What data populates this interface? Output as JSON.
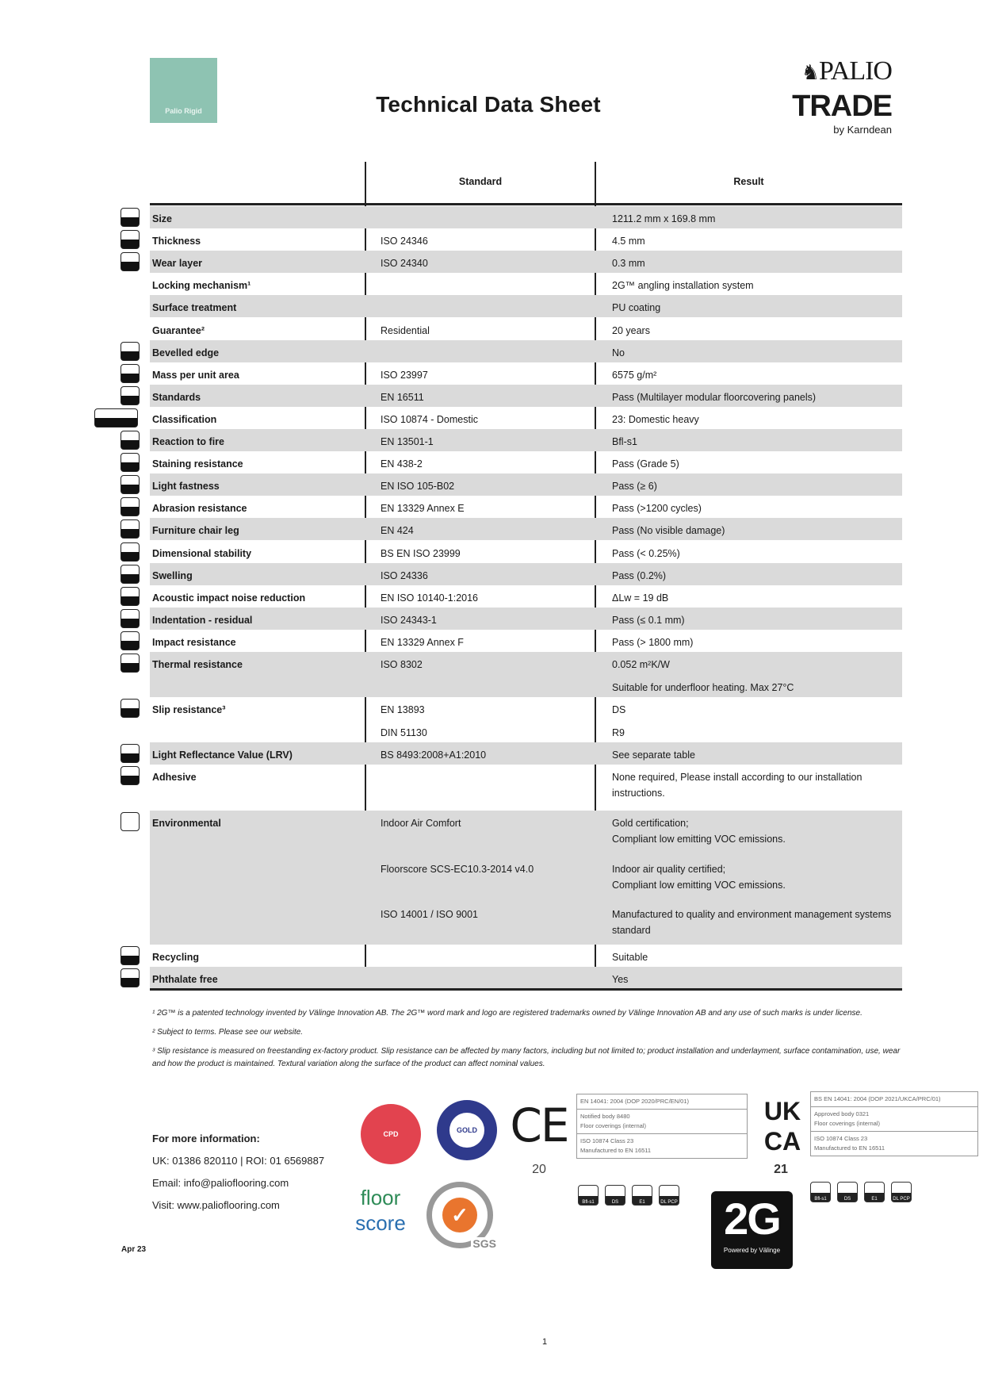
{
  "header": {
    "swatch_label": "Palio Rigid",
    "swatch_color": "#8ec3b2",
    "title": "Technical Data Sheet",
    "brand_line1": "PALIO",
    "brand_line2": "TRADE",
    "brand_line3": "by Karndean"
  },
  "table": {
    "columns": [
      "",
      "Standard",
      "Result"
    ],
    "row_shading": "#dadada",
    "rows": [
      {
        "label": "Size",
        "icon": "size-icon",
        "standard": [],
        "result": [
          "1211.2 mm x 169.8 mm"
        ]
      },
      {
        "label": "Thickness",
        "icon": "thickness-icon",
        "standard": [
          "ISO 24346"
        ],
        "result": [
          "4.5 mm"
        ]
      },
      {
        "label": "Wear layer",
        "icon": "wear-layer-icon",
        "standard": [
          "ISO 24340"
        ],
        "result": [
          "0.3 mm"
        ]
      },
      {
        "label": "Locking mechanism¹",
        "icon": "",
        "standard": [],
        "result": [
          "2G™ angling installation system"
        ]
      },
      {
        "label": "Surface treatment",
        "icon": "",
        "standard": [],
        "result": [
          "PU coating"
        ]
      },
      {
        "label": "Guarantee²",
        "icon": "",
        "standard": [
          "Residential"
        ],
        "result": [
          "20 years"
        ]
      },
      {
        "label": "Bevelled edge",
        "icon": "bevelled-edge-icon",
        "standard": [],
        "result": [
          "No"
        ]
      },
      {
        "label": "Mass per unit area",
        "icon": "mass-icon",
        "standard": [
          "ISO 23997"
        ],
        "result": [
          "6575 g/m²"
        ]
      },
      {
        "label": "Standards",
        "icon": "standards-icon",
        "standard": [
          "EN 16511"
        ],
        "result": [
          "Pass (Multilayer modular floorcovering panels)"
        ]
      },
      {
        "label": "Classification",
        "icon": "classification-icon",
        "standard": [
          "ISO 10874 - Domestic"
        ],
        "result": [
          "23: Domestic heavy"
        ]
      },
      {
        "label": "Reaction to fire",
        "icon": "fire-icon",
        "standard": [
          "EN 13501-1"
        ],
        "result": [
          "Bfl-s1"
        ]
      },
      {
        "label": "Staining resistance",
        "icon": "staining-icon",
        "standard": [
          "EN 438-2"
        ],
        "result": [
          "Pass (Grade 5)"
        ]
      },
      {
        "label": "Light fastness",
        "icon": "light-fastness-icon",
        "standard": [
          "EN ISO 105-B02"
        ],
        "result": [
          "Pass (≥ 6)"
        ]
      },
      {
        "label": "Abrasion resistance",
        "icon": "abrasion-icon",
        "standard": [
          "EN 13329 Annex E"
        ],
        "result": [
          "Pass (>1200 cycles)"
        ]
      },
      {
        "label": "Furniture chair leg",
        "icon": "chair-leg-icon",
        "standard": [
          "EN 424"
        ],
        "result": [
          "Pass (No visible damage)"
        ]
      },
      {
        "label": "Dimensional stability",
        "icon": "dimensional-stability-icon",
        "standard": [
          "BS EN ISO 23999"
        ],
        "result": [
          "Pass (< 0.25%)"
        ]
      },
      {
        "label": "Swelling",
        "icon": "swelling-icon",
        "standard": [
          "ISO 24336"
        ],
        "result": [
          "Pass (0.2%)"
        ]
      },
      {
        "label": "Acoustic impact noise reduction",
        "icon": "acoustic-icon",
        "standard": [
          "EN ISO 10140-1:2016"
        ],
        "result": [
          "ΔLw = 19 dB"
        ]
      },
      {
        "label": "Indentation - residual",
        "icon": "indentation-icon",
        "standard": [
          "ISO 24343-1"
        ],
        "result": [
          "Pass (≤ 0.1 mm)"
        ]
      },
      {
        "label": "Impact resistance",
        "icon": "impact-icon",
        "standard": [
          "EN 13329 Annex F"
        ],
        "result": [
          "Pass (> 1800 mm)"
        ]
      },
      {
        "label": "Thermal resistance",
        "icon": "thermal-icon",
        "standard": [
          "ISO 8302"
        ],
        "result": [
          "0.052 m²K/W",
          "Suitable for underfloor heating. Max 27°C"
        ]
      },
      {
        "label": "Slip resistance³",
        "icon": "slip-icon",
        "standard": [
          "EN 13893",
          "DIN 51130"
        ],
        "result": [
          "DS",
          "R9"
        ]
      },
      {
        "label": "Light Reflectance Value (LRV)",
        "icon": "lrv-icon",
        "standard": [
          "BS 8493:2008+A1:2010"
        ],
        "result": [
          "See separate table"
        ]
      },
      {
        "label": "Adhesive",
        "icon": "adhesive-icon",
        "standard": [],
        "result": [
          "None required, Please install according to our installation instructions."
        ]
      },
      {
        "label": "Environmental",
        "icon": "environmental-icon",
        "standard": [
          "Indoor Air Comfort",
          "Floorscore SCS-EC10.3-2014 v4.0",
          "ISO 14001 / ISO 9001"
        ],
        "result": [
          "Gold certification;\nCompliant low emitting VOC emissions.",
          "Indoor air quality certified;\nCompliant low emitting VOC emissions.",
          "Manufactured to quality and environment management systems standard"
        ]
      },
      {
        "label": "Recycling",
        "icon": "recycling-icon",
        "standard": [],
        "result": [
          "Suitable"
        ]
      },
      {
        "label": "Phthalate free",
        "icon": "phthalate-free-icon",
        "standard": [],
        "result": [
          "Yes"
        ]
      }
    ]
  },
  "footnotes": [
    "¹ 2G™ is a patented technology invented by Välinge Innovation AB. The 2G™ word mark and logo are registered trademarks owned by Välinge Innovation AB and any use of such marks is under license.",
    "² Subject to terms. Please see our website.",
    "³ Slip resistance is measured on freestanding ex-factory product. Slip resistance can be affected by many factors, including but not limited to; product installation and underlayment, surface contamination, use, wear and how the product is maintained. Textural variation along the surface of the product can affect nominal values."
  ],
  "contact": {
    "heading": "For more information:",
    "phone": "UK: 01386 820110 | ROI: 01 6569887",
    "email": "Email: info@palioflooring.com",
    "web": "Visit: www.palioflooring.com"
  },
  "date": "Apr 23",
  "page_number": "1",
  "certifications": {
    "cpd_label": "CPD",
    "iac_label": "GOLD",
    "floorscore_line1": "floor",
    "floorscore_line2": "score",
    "sgs_label": "SGS",
    "ce_mark": "CE",
    "ce_number": "20",
    "ce_box": [
      "EN 14041: 2004 (DOP 2020/PRC/EN/01)",
      "Notified body 8480\nFloor coverings (internal)",
      "ISO 10874 Class 23\nManufactured to EN 16511"
    ],
    "ukca_mark_line1": "UK",
    "ukca_mark_line2": "CA",
    "ukca_number": "21",
    "ukca_box": [
      "BS EN 14041: 2004 (DOP 2021/UKCA/PRC/01)",
      "Approved body 0321\nFloor coverings (internal)",
      "ISO 10874 Class 23\nManufactured to EN 16511"
    ],
    "mini_icons": [
      "Bfl-s1",
      "DS",
      "E1",
      "DL PCP"
    ],
    "twog_mark": "2G",
    "twog_sub": "Powered by Välinge"
  }
}
